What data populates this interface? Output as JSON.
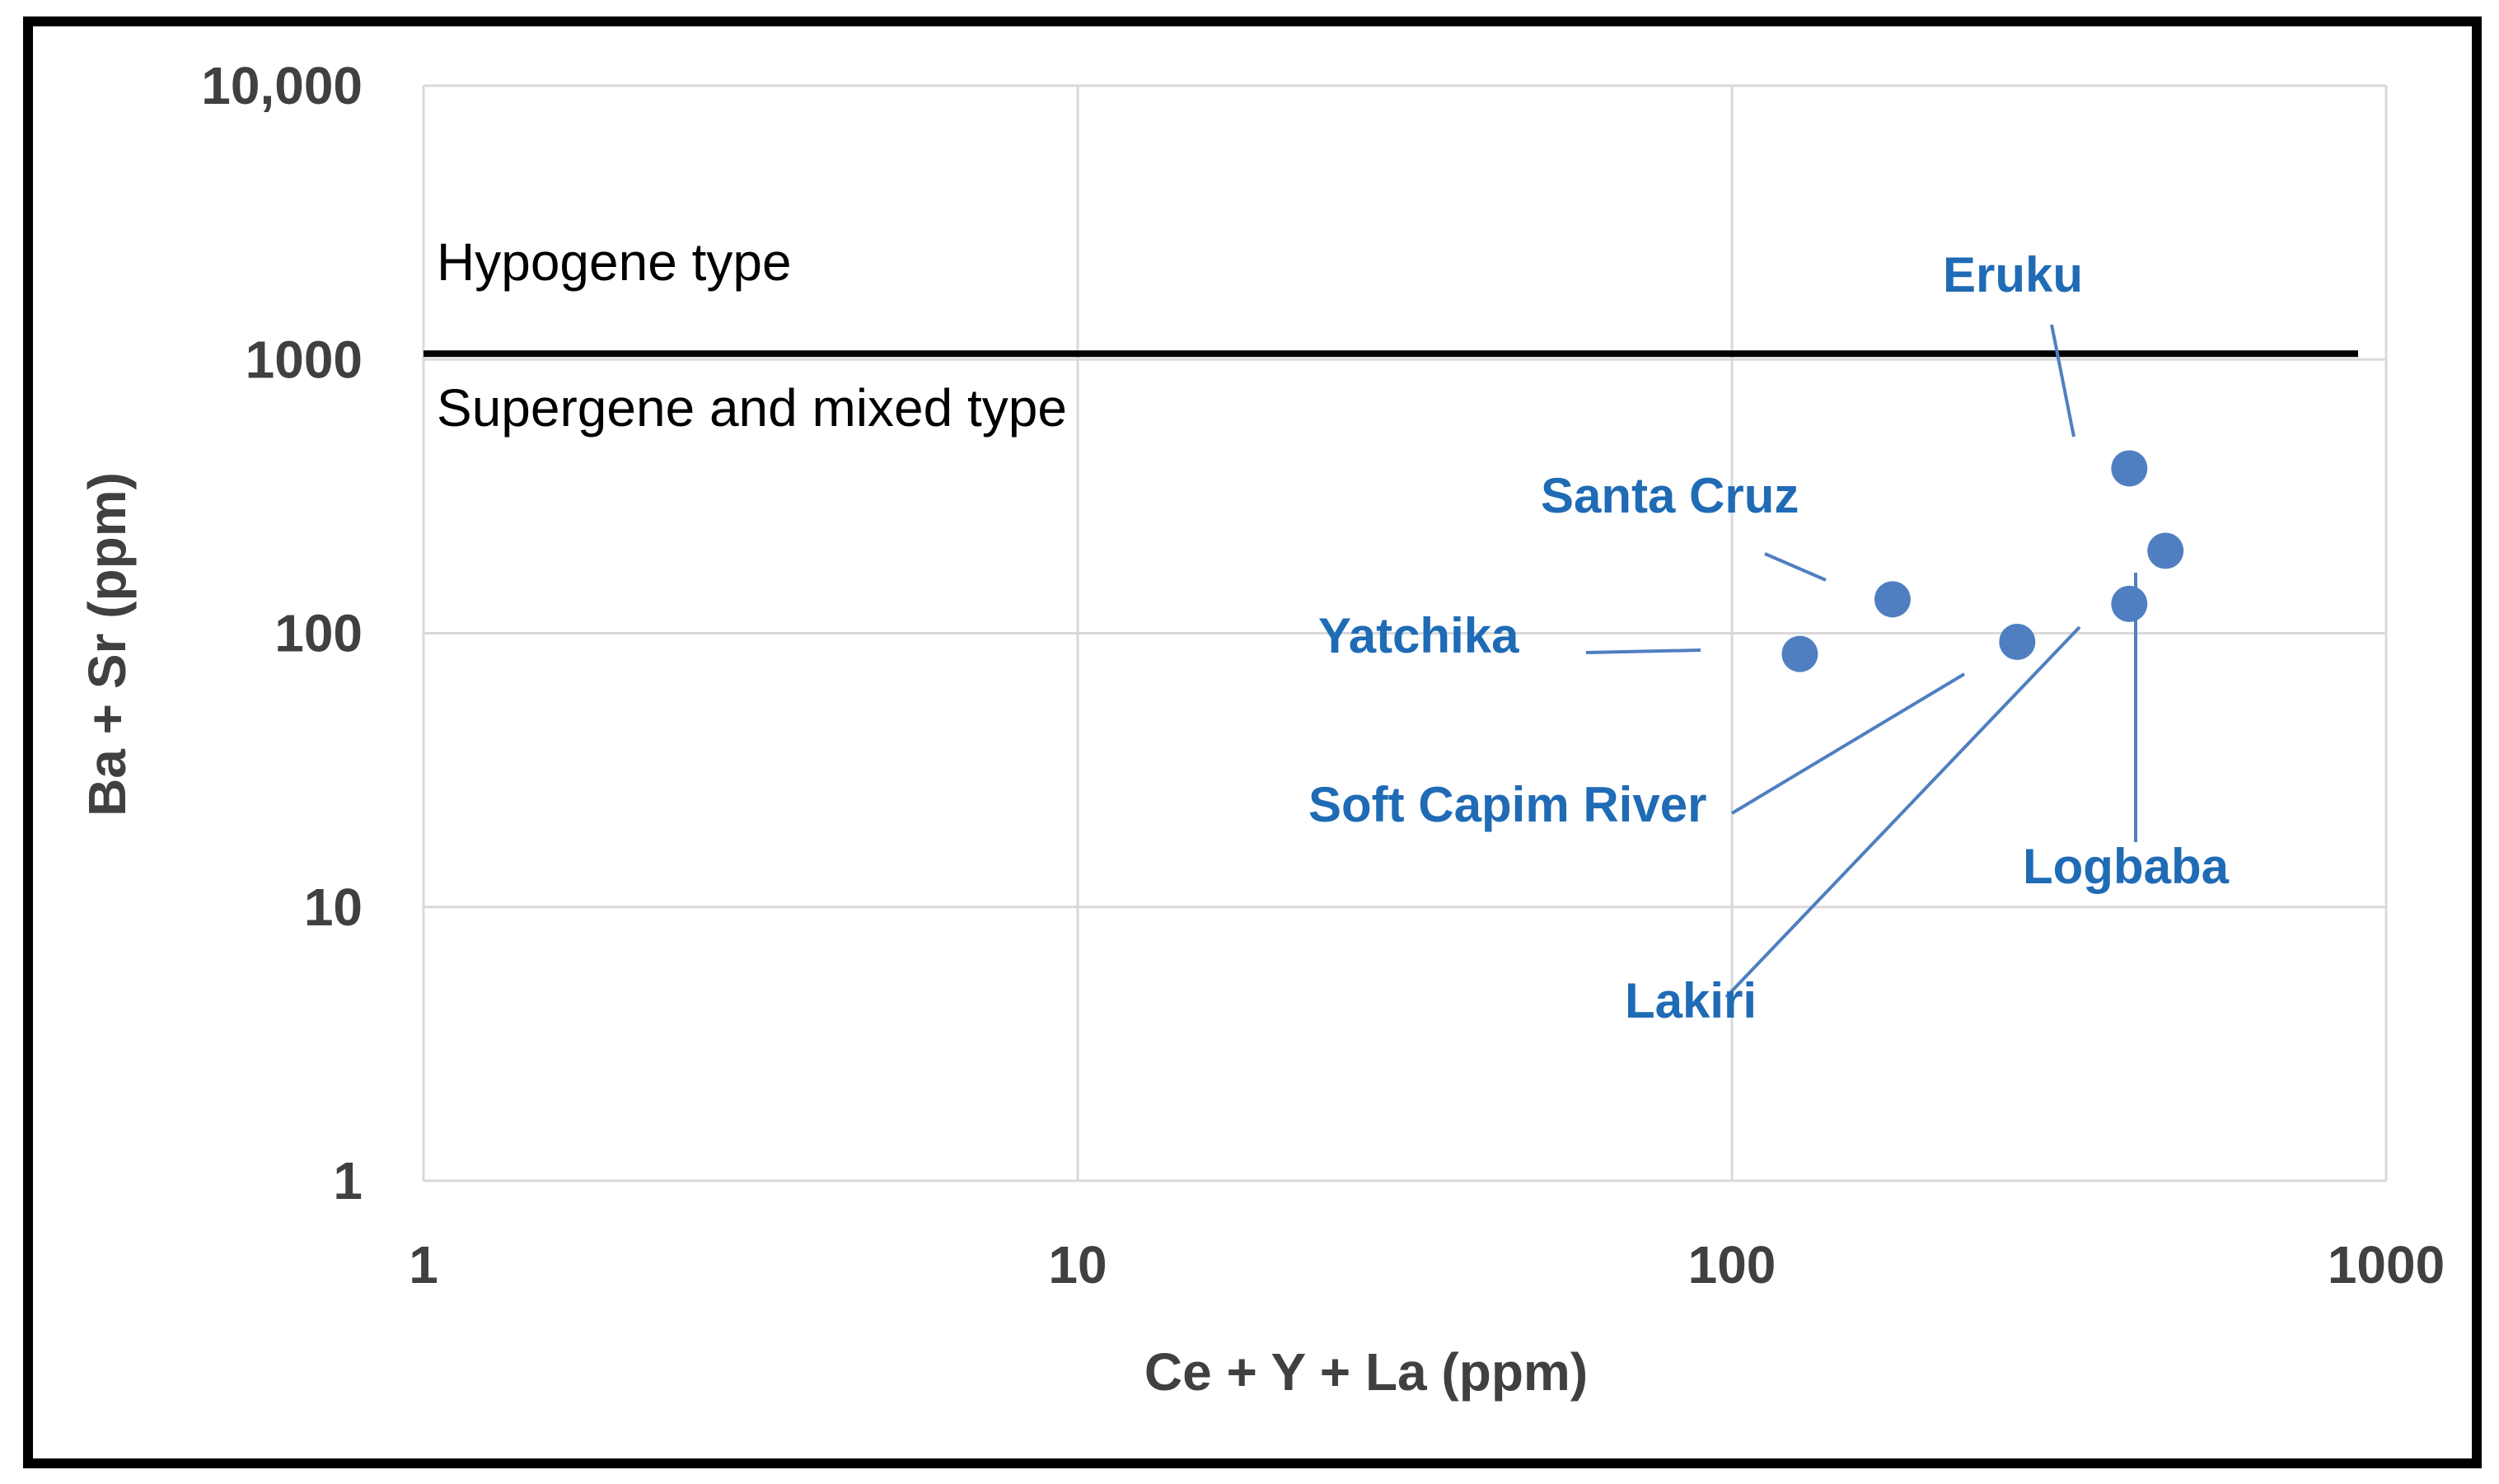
{
  "chart_data": {
    "type": "scatter",
    "xlabel": "Ce + Y + La (ppm)",
    "ylabel": "Ba + Sr (ppm)",
    "x_scale": "log",
    "y_scale": "log",
    "xlim": [
      1,
      1000
    ],
    "ylim": [
      1,
      10000
    ],
    "x_ticks": [
      1,
      10,
      100,
      1000
    ],
    "x_tick_labels": [
      "1",
      "10",
      "100",
      "1000"
    ],
    "y_ticks": [
      1,
      10,
      100,
      1000,
      10000
    ],
    "y_tick_labels": [
      "1",
      "10",
      "100",
      "1000",
      "10,000"
    ],
    "grid": true,
    "boundary": {
      "y": 1050,
      "above_label": "Hypogene type",
      "below_label": "Supergene and mixed type"
    },
    "points": [
      {
        "name": "Yatchika",
        "x": 127,
        "y": 84
      },
      {
        "name": "Santa Cruz",
        "x": 176,
        "y": 133
      },
      {
        "name": "Soft Capim River",
        "x": 273,
        "y": 93
      },
      {
        "name": "Lakiri",
        "x": 405,
        "y": 128
      },
      {
        "name": "Eruku",
        "x": 405,
        "y": 400
      },
      {
        "name": "Logbaba",
        "x": 460,
        "y": 200
      }
    ],
    "colors": {
      "point": "#4f7fc0",
      "label": "#1f6bb5",
      "grid": "#d9d9d9",
      "boundary": "#000000"
    }
  }
}
